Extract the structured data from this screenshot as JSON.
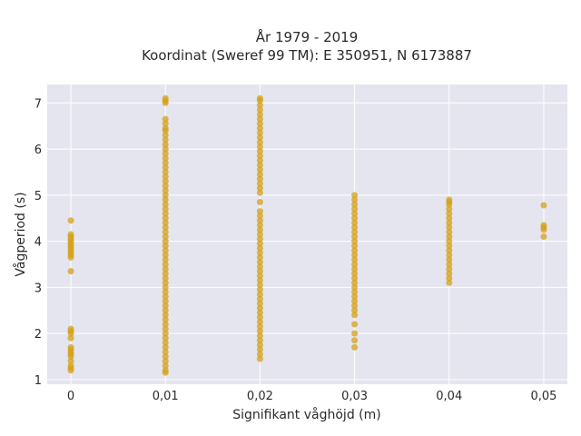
{
  "chart_data": {
    "type": "scatter",
    "title_line1": "År 1979 - 2019",
    "title_line2": "Koordinat (Sweref 99 TM): E 350951, N 6173887",
    "xlabel": "Signifikant våghöjd (m)",
    "ylabel": "Vågperiod (s)",
    "xlim": [
      -0.0025,
      0.0525
    ],
    "ylim": [
      0.9,
      7.4
    ],
    "x_ticks": [
      {
        "value": 0,
        "label": "0"
      },
      {
        "value": 0.01,
        "label": "0,01"
      },
      {
        "value": 0.02,
        "label": "0,02"
      },
      {
        "value": 0.03,
        "label": "0,03"
      },
      {
        "value": 0.04,
        "label": "0,04"
      },
      {
        "value": 0.05,
        "label": "0,05"
      }
    ],
    "y_ticks": [
      {
        "value": 1,
        "label": "1"
      },
      {
        "value": 2,
        "label": "2"
      },
      {
        "value": 3,
        "label": "3"
      },
      {
        "value": 4,
        "label": "4"
      },
      {
        "value": 5,
        "label": "5"
      },
      {
        "value": 6,
        "label": "6"
      },
      {
        "value": 7,
        "label": "7"
      }
    ],
    "grid": true,
    "colors": {
      "plot_bg": "#e5e5ef",
      "grid": "#ffffff",
      "marker": "#d4a017"
    },
    "series": [
      {
        "x": 0,
        "y": [
          1.2,
          1.25,
          1.3,
          1.4,
          1.5,
          1.55,
          1.6,
          1.65,
          1.7,
          1.9,
          2.0,
          2.05,
          2.1,
          3.35,
          3.65,
          3.7,
          3.75,
          3.8,
          3.85,
          3.9,
          3.95,
          4.0,
          4.05,
          4.1,
          4.15,
          4.45
        ]
      },
      {
        "x": 0.01,
        "y": [
          1.15,
          1.2,
          1.3,
          1.4,
          1.5,
          1.6,
          1.7,
          1.8,
          1.9,
          2.0,
          2.1,
          2.2,
          2.3,
          2.4,
          2.5,
          2.6,
          2.7,
          2.8,
          2.9,
          3.0,
          3.1,
          3.2,
          3.3,
          3.4,
          3.5,
          3.6,
          3.7,
          3.8,
          3.9,
          4.0,
          4.1,
          4.2,
          4.3,
          4.4,
          4.5,
          4.6,
          4.7,
          4.8,
          4.9,
          5.0,
          5.1,
          5.2,
          5.3,
          5.4,
          5.5,
          5.6,
          5.7,
          5.8,
          5.9,
          6.0,
          6.1,
          6.2,
          6.3,
          6.4,
          6.45,
          6.55,
          6.65,
          7.0,
          7.05,
          7.1
        ]
      },
      {
        "x": 0.02,
        "y": [
          1.45,
          1.55,
          1.65,
          1.75,
          1.85,
          1.95,
          2.05,
          2.15,
          2.25,
          2.35,
          2.45,
          2.55,
          2.65,
          2.75,
          2.85,
          2.95,
          3.05,
          3.15,
          3.25,
          3.35,
          3.45,
          3.55,
          3.65,
          3.75,
          3.85,
          3.95,
          4.05,
          4.15,
          4.25,
          4.35,
          4.45,
          4.55,
          4.65,
          4.85,
          5.05,
          5.15,
          5.25,
          5.35,
          5.45,
          5.55,
          5.65,
          5.75,
          5.85,
          5.95,
          6.05,
          6.15,
          6.25,
          6.35,
          6.45,
          6.55,
          6.65,
          6.75,
          6.85,
          6.95,
          7.05,
          7.1
        ]
      },
      {
        "x": 0.03,
        "y": [
          1.7,
          1.85,
          2.0,
          2.2,
          2.4,
          2.5,
          2.6,
          2.7,
          2.8,
          2.9,
          3.0,
          3.1,
          3.2,
          3.3,
          3.4,
          3.5,
          3.6,
          3.7,
          3.8,
          3.9,
          4.0,
          4.1,
          4.2,
          4.3,
          4.4,
          4.5,
          4.6,
          4.7,
          4.8,
          4.9,
          5.0
        ]
      },
      {
        "x": 0.04,
        "y": [
          3.1,
          3.2,
          3.3,
          3.4,
          3.5,
          3.6,
          3.7,
          3.8,
          3.9,
          4.0,
          4.1,
          4.2,
          4.3,
          4.4,
          4.5,
          4.6,
          4.7,
          4.8,
          4.85,
          4.9
        ]
      },
      {
        "x": 0.05,
        "y": [
          4.1,
          4.25,
          4.3,
          4.35,
          4.78
        ]
      }
    ]
  }
}
